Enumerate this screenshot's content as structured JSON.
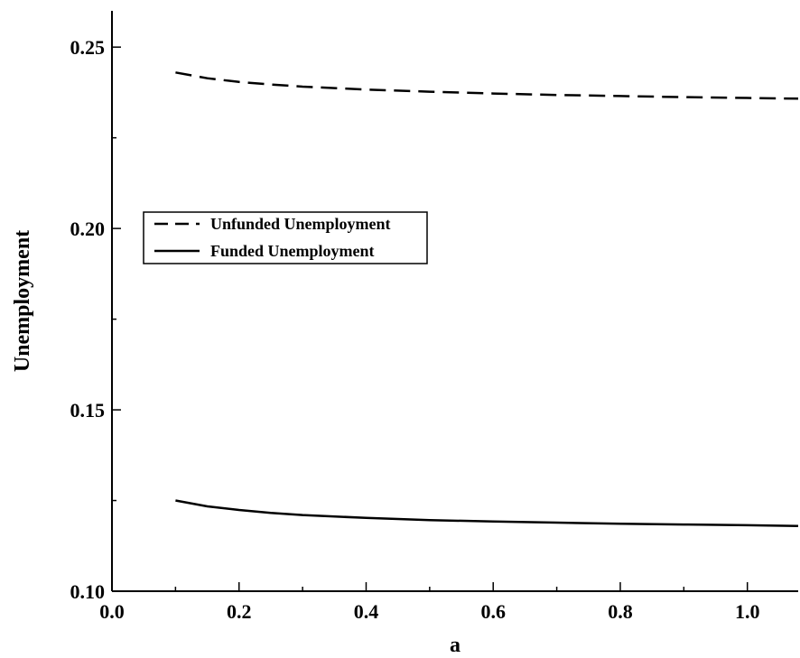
{
  "chart_data": {
    "type": "line",
    "title": "",
    "xlabel": "a",
    "ylabel": "Unemployment",
    "xlim": [
      0.0,
      1.08
    ],
    "ylim": [
      0.1,
      0.26
    ],
    "x_ticks": [
      0.0,
      0.2,
      0.4,
      0.6,
      0.8,
      1.0
    ],
    "x_tick_labels": [
      "0.0",
      "0.2",
      "0.4",
      "0.6",
      "0.8",
      "1.0"
    ],
    "y_ticks": [
      0.1,
      0.15,
      0.2,
      0.25
    ],
    "y_tick_labels": [
      "0.10",
      "0.15",
      "0.20",
      "0.25"
    ],
    "grid": false,
    "legend_position": "center-left",
    "series": [
      {
        "name": "Unfunded Unemployment",
        "style": "dashed",
        "color": "#000000",
        "x": [
          0.1,
          0.15,
          0.2,
          0.25,
          0.3,
          0.4,
          0.5,
          0.6,
          0.7,
          0.8,
          0.9,
          1.0,
          1.08
        ],
        "y": [
          0.243,
          0.2414,
          0.2404,
          0.2397,
          0.2391,
          0.2383,
          0.2377,
          0.2372,
          0.2368,
          0.2365,
          0.2362,
          0.236,
          0.2358
        ]
      },
      {
        "name": "Funded Unemployment",
        "style": "solid",
        "color": "#000000",
        "x": [
          0.1,
          0.15,
          0.2,
          0.25,
          0.3,
          0.4,
          0.5,
          0.6,
          0.7,
          0.8,
          0.9,
          1.0,
          1.08
        ],
        "y": [
          0.125,
          0.1234,
          0.1224,
          0.1216,
          0.121,
          0.1202,
          0.1196,
          0.1192,
          0.1189,
          0.1186,
          0.1184,
          0.1182,
          0.118
        ]
      }
    ]
  }
}
